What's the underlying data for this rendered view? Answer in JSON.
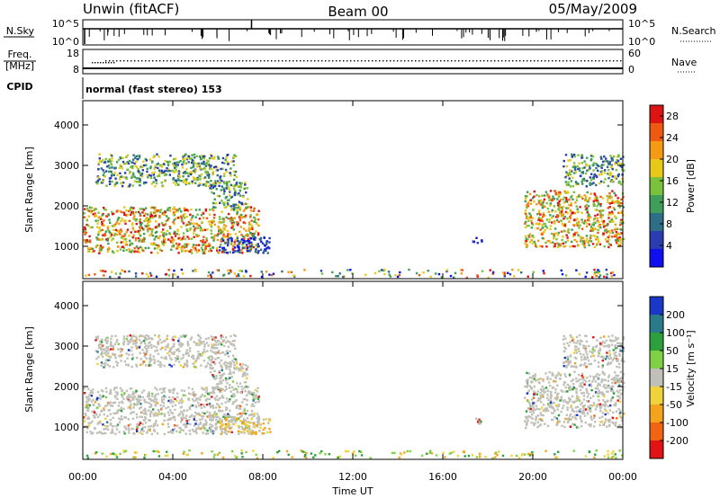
{
  "header": {
    "station": "Unwin (fitACF)",
    "beam": "Beam 00",
    "date": "05/May/2009"
  },
  "strips": {
    "nsky_label": "N.Sky",
    "nsky_ticks": [
      "10^5",
      "10^0"
    ],
    "nsearch_label": "N.Search",
    "nsearch_ticks": [
      "10^5",
      "10^0"
    ],
    "freq_label": "Freq.",
    "freq_unit": "[MHz]",
    "freq_ticks": [
      "18",
      "8"
    ],
    "nave_label": "Nave",
    "nave_ticks": [
      "60",
      "0"
    ],
    "cpid_label": "CPID",
    "cpid_text": "normal (fast stereo) 153"
  },
  "chart_data": [
    {
      "type": "heatmap",
      "title": "",
      "xlabel": "Time UT",
      "ylabel": "Slant Range [km]",
      "xlim": [
        "00:00",
        "24:00"
      ],
      "x_ticks": [
        "00:00",
        "04:00",
        "08:00",
        "12:00",
        "16:00",
        "20:00",
        "00:00"
      ],
      "ylim": [
        200,
        4600
      ],
      "y_ticks": [
        1000,
        2000,
        3000,
        4000
      ],
      "colorbar": {
        "label": "Power [dB]",
        "ticks": [
          4,
          8,
          12,
          16,
          20,
          24,
          28
        ],
        "range": [
          0,
          30
        ],
        "colors": [
          "#1010ee",
          "#2a3cb0",
          "#2e6e86",
          "#3f9f5a",
          "#7ac23c",
          "#e8c818",
          "#f49a14",
          "#ef5a12",
          "#dc1414"
        ]
      },
      "scatter_regions": [
        {
          "t_start": 0.0,
          "t_end": 7.8,
          "range_min": 850,
          "range_max": 2000,
          "level": "high"
        },
        {
          "t_start": 0.5,
          "t_end": 6.8,
          "range_min": 2500,
          "range_max": 3300,
          "level": "medium"
        },
        {
          "t_start": 5.6,
          "t_end": 7.3,
          "range_min": 1950,
          "range_max": 2600,
          "level": "medium"
        },
        {
          "t_start": 6.0,
          "t_end": 8.3,
          "range_min": 850,
          "range_max": 1250,
          "level": "low"
        },
        {
          "t_start": 17.3,
          "t_end": 17.7,
          "range_min": 1050,
          "range_max": 1250,
          "level": "low"
        },
        {
          "t_start": 19.6,
          "t_end": 24.0,
          "range_min": 1000,
          "range_max": 2400,
          "level": "high"
        },
        {
          "t_start": 21.3,
          "t_end": 24.0,
          "range_min": 2500,
          "range_max": 3300,
          "level": "medium"
        },
        {
          "t_start": 0.0,
          "t_end": 24.0,
          "range_min": 250,
          "range_max": 450,
          "level": "noise"
        }
      ]
    },
    {
      "type": "heatmap",
      "title": "",
      "xlabel": "Time UT",
      "ylabel": "Slant Range [km]",
      "xlim": [
        "00:00",
        "24:00"
      ],
      "x_ticks": [
        "00:00",
        "04:00",
        "08:00",
        "12:00",
        "16:00",
        "20:00",
        "00:00"
      ],
      "ylim": [
        200,
        4600
      ],
      "y_ticks": [
        1000,
        2000,
        3000,
        4000
      ],
      "colorbar": {
        "label": "Velocity [m s⁻¹]",
        "ticks": [
          200,
          100,
          50,
          15,
          -15,
          -50,
          -100,
          -200
        ],
        "colors": [
          "#1a38c8",
          "#2a7a8a",
          "#2ca03c",
          "#7fd044",
          "#c0c0b8",
          "#f0d23a",
          "#f4a41c",
          "#f06414",
          "#e01414"
        ]
      },
      "scatter_regions": [
        {
          "t_start": 0.0,
          "t_end": 7.8,
          "range_min": 850,
          "range_max": 2000,
          "level": "ground"
        },
        {
          "t_start": 0.5,
          "t_end": 6.8,
          "range_min": 2500,
          "range_max": 3300,
          "level": "ground"
        },
        {
          "t_start": 5.6,
          "t_end": 7.3,
          "range_min": 1950,
          "range_max": 2600,
          "level": "ground"
        },
        {
          "t_start": 6.0,
          "t_end": 8.3,
          "range_min": 850,
          "range_max": 1250,
          "level": "orange"
        },
        {
          "t_start": 17.3,
          "t_end": 17.7,
          "range_min": 1050,
          "range_max": 1250,
          "level": "ground"
        },
        {
          "t_start": 19.6,
          "t_end": 24.0,
          "range_min": 1000,
          "range_max": 2400,
          "level": "ground"
        },
        {
          "t_start": 21.3,
          "t_end": 24.0,
          "range_min": 2500,
          "range_max": 3300,
          "level": "ground"
        },
        {
          "t_start": 0.0,
          "t_end": 24.0,
          "range_min": 250,
          "range_max": 450,
          "level": "noise"
        }
      ]
    }
  ]
}
